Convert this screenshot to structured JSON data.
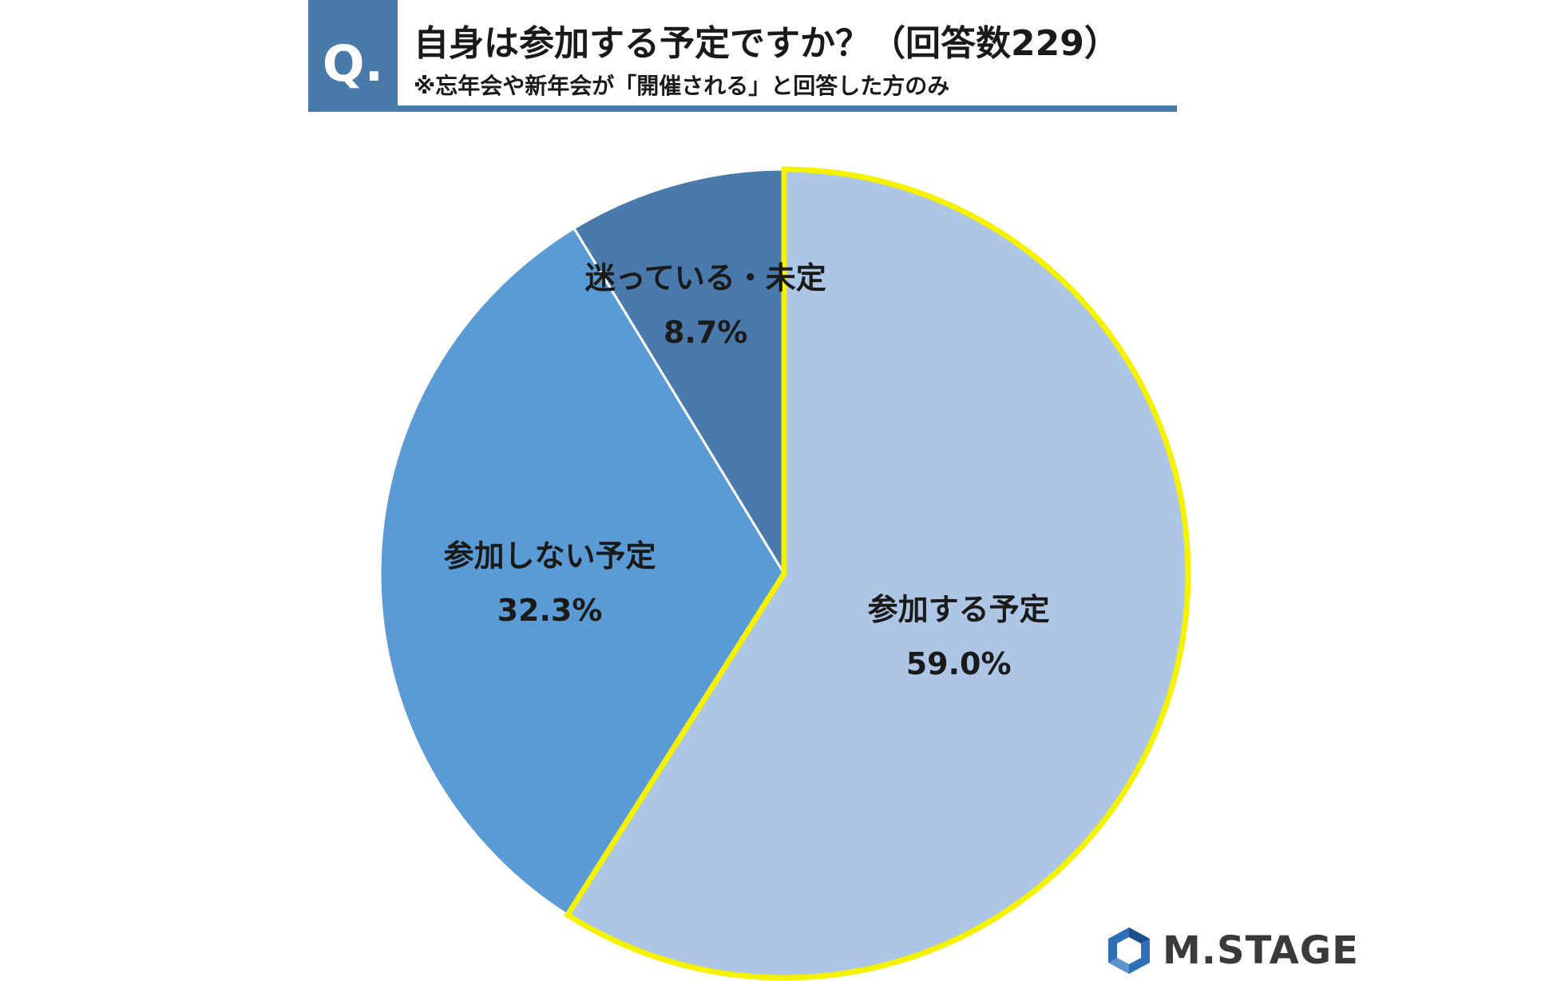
{
  "header": {
    "badge": "Q.",
    "title": "自身は参加する予定ですか？（回答数229）",
    "subtitle": "※忘年会や新年会が「開催される」と回答した方のみ"
  },
  "chart_data": {
    "type": "pie",
    "title": "自身は参加する予定ですか？（回答数229）",
    "slices": [
      {
        "label": "参加する予定",
        "value": 59.0,
        "value_label": "59.0%",
        "color": "#adc6e5",
        "highlight": true,
        "highlight_color": "#f4f200"
      },
      {
        "label": "参加しない予定",
        "value": 32.3,
        "value_label": "32.3%",
        "color": "#5b9bd5",
        "highlight": false
      },
      {
        "label": "迷っている・未定",
        "value": 8.7,
        "value_label": "8.7%",
        "color": "#4a7aac",
        "highlight": false
      }
    ],
    "start": "12 o'clock",
    "direction": "clockwise"
  },
  "logo": {
    "text": "M.STAGE",
    "color": "#3a3a3a"
  }
}
